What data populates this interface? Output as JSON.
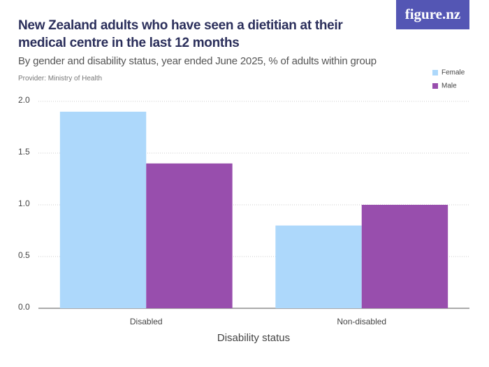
{
  "logo": "figure.nz",
  "chart_data": {
    "type": "bar",
    "title": "New Zealand adults who have seen a dietitian at their medical centre in the last 12 months",
    "subtitle": "By gender and disability status, year ended June 2025, % of adults within group",
    "provider": "Provider: Ministry of Health",
    "x_label": "Disability status",
    "categories": [
      "Disabled",
      "Non-disabled"
    ],
    "series": [
      {
        "name": "Female",
        "color": "#add8fb",
        "values": [
          1.9,
          0.8
        ]
      },
      {
        "name": "Male",
        "color": "#984ead",
        "values": [
          1.4,
          1.0
        ]
      }
    ],
    "ylim": [
      0,
      2
    ],
    "yticks": [
      {
        "value": 0,
        "label": "0.0"
      },
      {
        "value": 0.5,
        "label": "0.5"
      },
      {
        "value": 1,
        "label": "1.0"
      },
      {
        "value": 1.5,
        "label": "1.5"
      },
      {
        "value": 2,
        "label": "2.0"
      }
    ],
    "grid": true,
    "legend": "top-right"
  }
}
